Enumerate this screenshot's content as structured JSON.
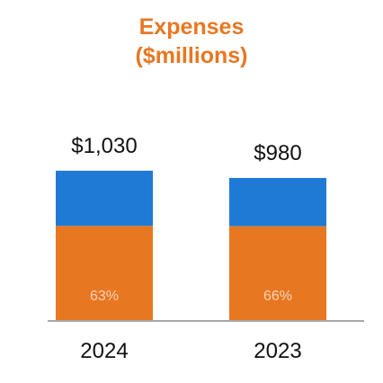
{
  "chart_data": {
    "type": "bar",
    "title_line1": "Expenses",
    "title_line2": "($millions)",
    "categories": [
      "2024",
      "2023"
    ],
    "totals": [
      1030,
      980
    ],
    "total_labels": [
      "$1,030",
      "$980"
    ],
    "segment_percent": [
      63,
      66
    ],
    "segment_labels": [
      "63%",
      "66%"
    ],
    "colors": {
      "title": "#e87722",
      "segment_orange": "#e87722",
      "segment_blue": "#1f7ad6",
      "baseline": "#8c8c8c",
      "text": "#111111",
      "inner_label": "#f5d3b6"
    }
  }
}
